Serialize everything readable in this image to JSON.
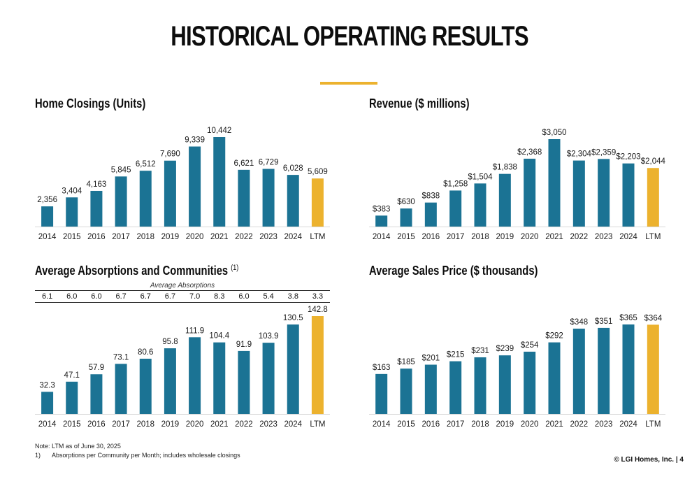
{
  "page": {
    "title": "HISTORICAL OPERATING RESULTS",
    "accent_color": "#ecb22e",
    "bar_color": "#1b7394",
    "ltm_color": "#ecb22e",
    "note_text": "Note: LTM as of June 30, 2025",
    "footnote_number": "1)",
    "footnote_text": "Absorptions per Community per Month; includes wholesale closings",
    "footer": "© LGI Homes, Inc. | 4"
  },
  "chart_data": [
    {
      "type": "bar",
      "title": "Home Closings (Units)",
      "categories": [
        "2014",
        "2015",
        "2016",
        "2017",
        "2018",
        "2019",
        "2020",
        "2021",
        "2022",
        "2023",
        "2024",
        "LTM"
      ],
      "values": [
        2356,
        3404,
        4163,
        5845,
        6512,
        7690,
        9339,
        10442,
        6621,
        6729,
        6028,
        5609
      ],
      "labels": [
        "2,356",
        "3,404",
        "4,163",
        "5,845",
        "6,512",
        "7,690",
        "9,339",
        "10,442",
        "6,621",
        "6,729",
        "6,028",
        "5,609"
      ],
      "ylim": [
        0,
        10442
      ],
      "highlight_last": true,
      "grid": false
    },
    {
      "type": "bar",
      "title": "Revenue ($ millions)",
      "categories": [
        "2014",
        "2015",
        "2016",
        "2017",
        "2018",
        "2019",
        "2020",
        "2021",
        "2022",
        "2023",
        "2024",
        "LTM"
      ],
      "values": [
        383,
        630,
        838,
        1258,
        1504,
        1838,
        2368,
        3050,
        2304,
        2359,
        2203,
        2044
      ],
      "labels": [
        "$383",
        "$630",
        "$838",
        "$1,258",
        "$1,504",
        "$1,838",
        "$2,368",
        "$3,050",
        "$2,304",
        "$2,359",
        "$2,203",
        "$2,044"
      ],
      "ylim": [
        0,
        3050
      ],
      "highlight_last": true,
      "grid": false
    },
    {
      "type": "bar",
      "title": "Average Absorptions and Communities",
      "title_superscript": "(1)",
      "categories": [
        "2014",
        "2015",
        "2016",
        "2017",
        "2018",
        "2019",
        "2020",
        "2021",
        "2022",
        "2023",
        "2024",
        "LTM"
      ],
      "values": [
        32.3,
        47.1,
        57.9,
        73.1,
        80.6,
        95.8,
        111.9,
        104.4,
        91.9,
        103.9,
        130.5,
        142.8
      ],
      "labels": [
        "32.3",
        "47.1",
        "57.9",
        "73.1",
        "80.6",
        "95.8",
        "111.9",
        "104.4",
        "91.9",
        "103.9",
        "130.5",
        "142.8"
      ],
      "ylim": [
        0,
        142.8
      ],
      "highlight_last": true,
      "grid": false,
      "absorptions_caption": "Average Absorptions",
      "absorptions": [
        "6.1",
        "6.0",
        "6.0",
        "6.7",
        "6.7",
        "6.7",
        "7.0",
        "8.3",
        "6.0",
        "5.4",
        "3.8",
        "3.3"
      ]
    },
    {
      "type": "bar",
      "title": "Average Sales Price ($ thousands)",
      "categories": [
        "2014",
        "2015",
        "2016",
        "2017",
        "2018",
        "2019",
        "2020",
        "2021",
        "2022",
        "2023",
        "2024",
        "LTM"
      ],
      "values": [
        163,
        185,
        201,
        215,
        231,
        239,
        254,
        292,
        348,
        351,
        365,
        364
      ],
      "labels": [
        "$163",
        "$185",
        "$201",
        "$215",
        "$231",
        "$239",
        "$254",
        "$292",
        "$348",
        "$351",
        "$365",
        "$364"
      ],
      "ylim": [
        0,
        365
      ],
      "highlight_last": true,
      "grid": false
    }
  ]
}
